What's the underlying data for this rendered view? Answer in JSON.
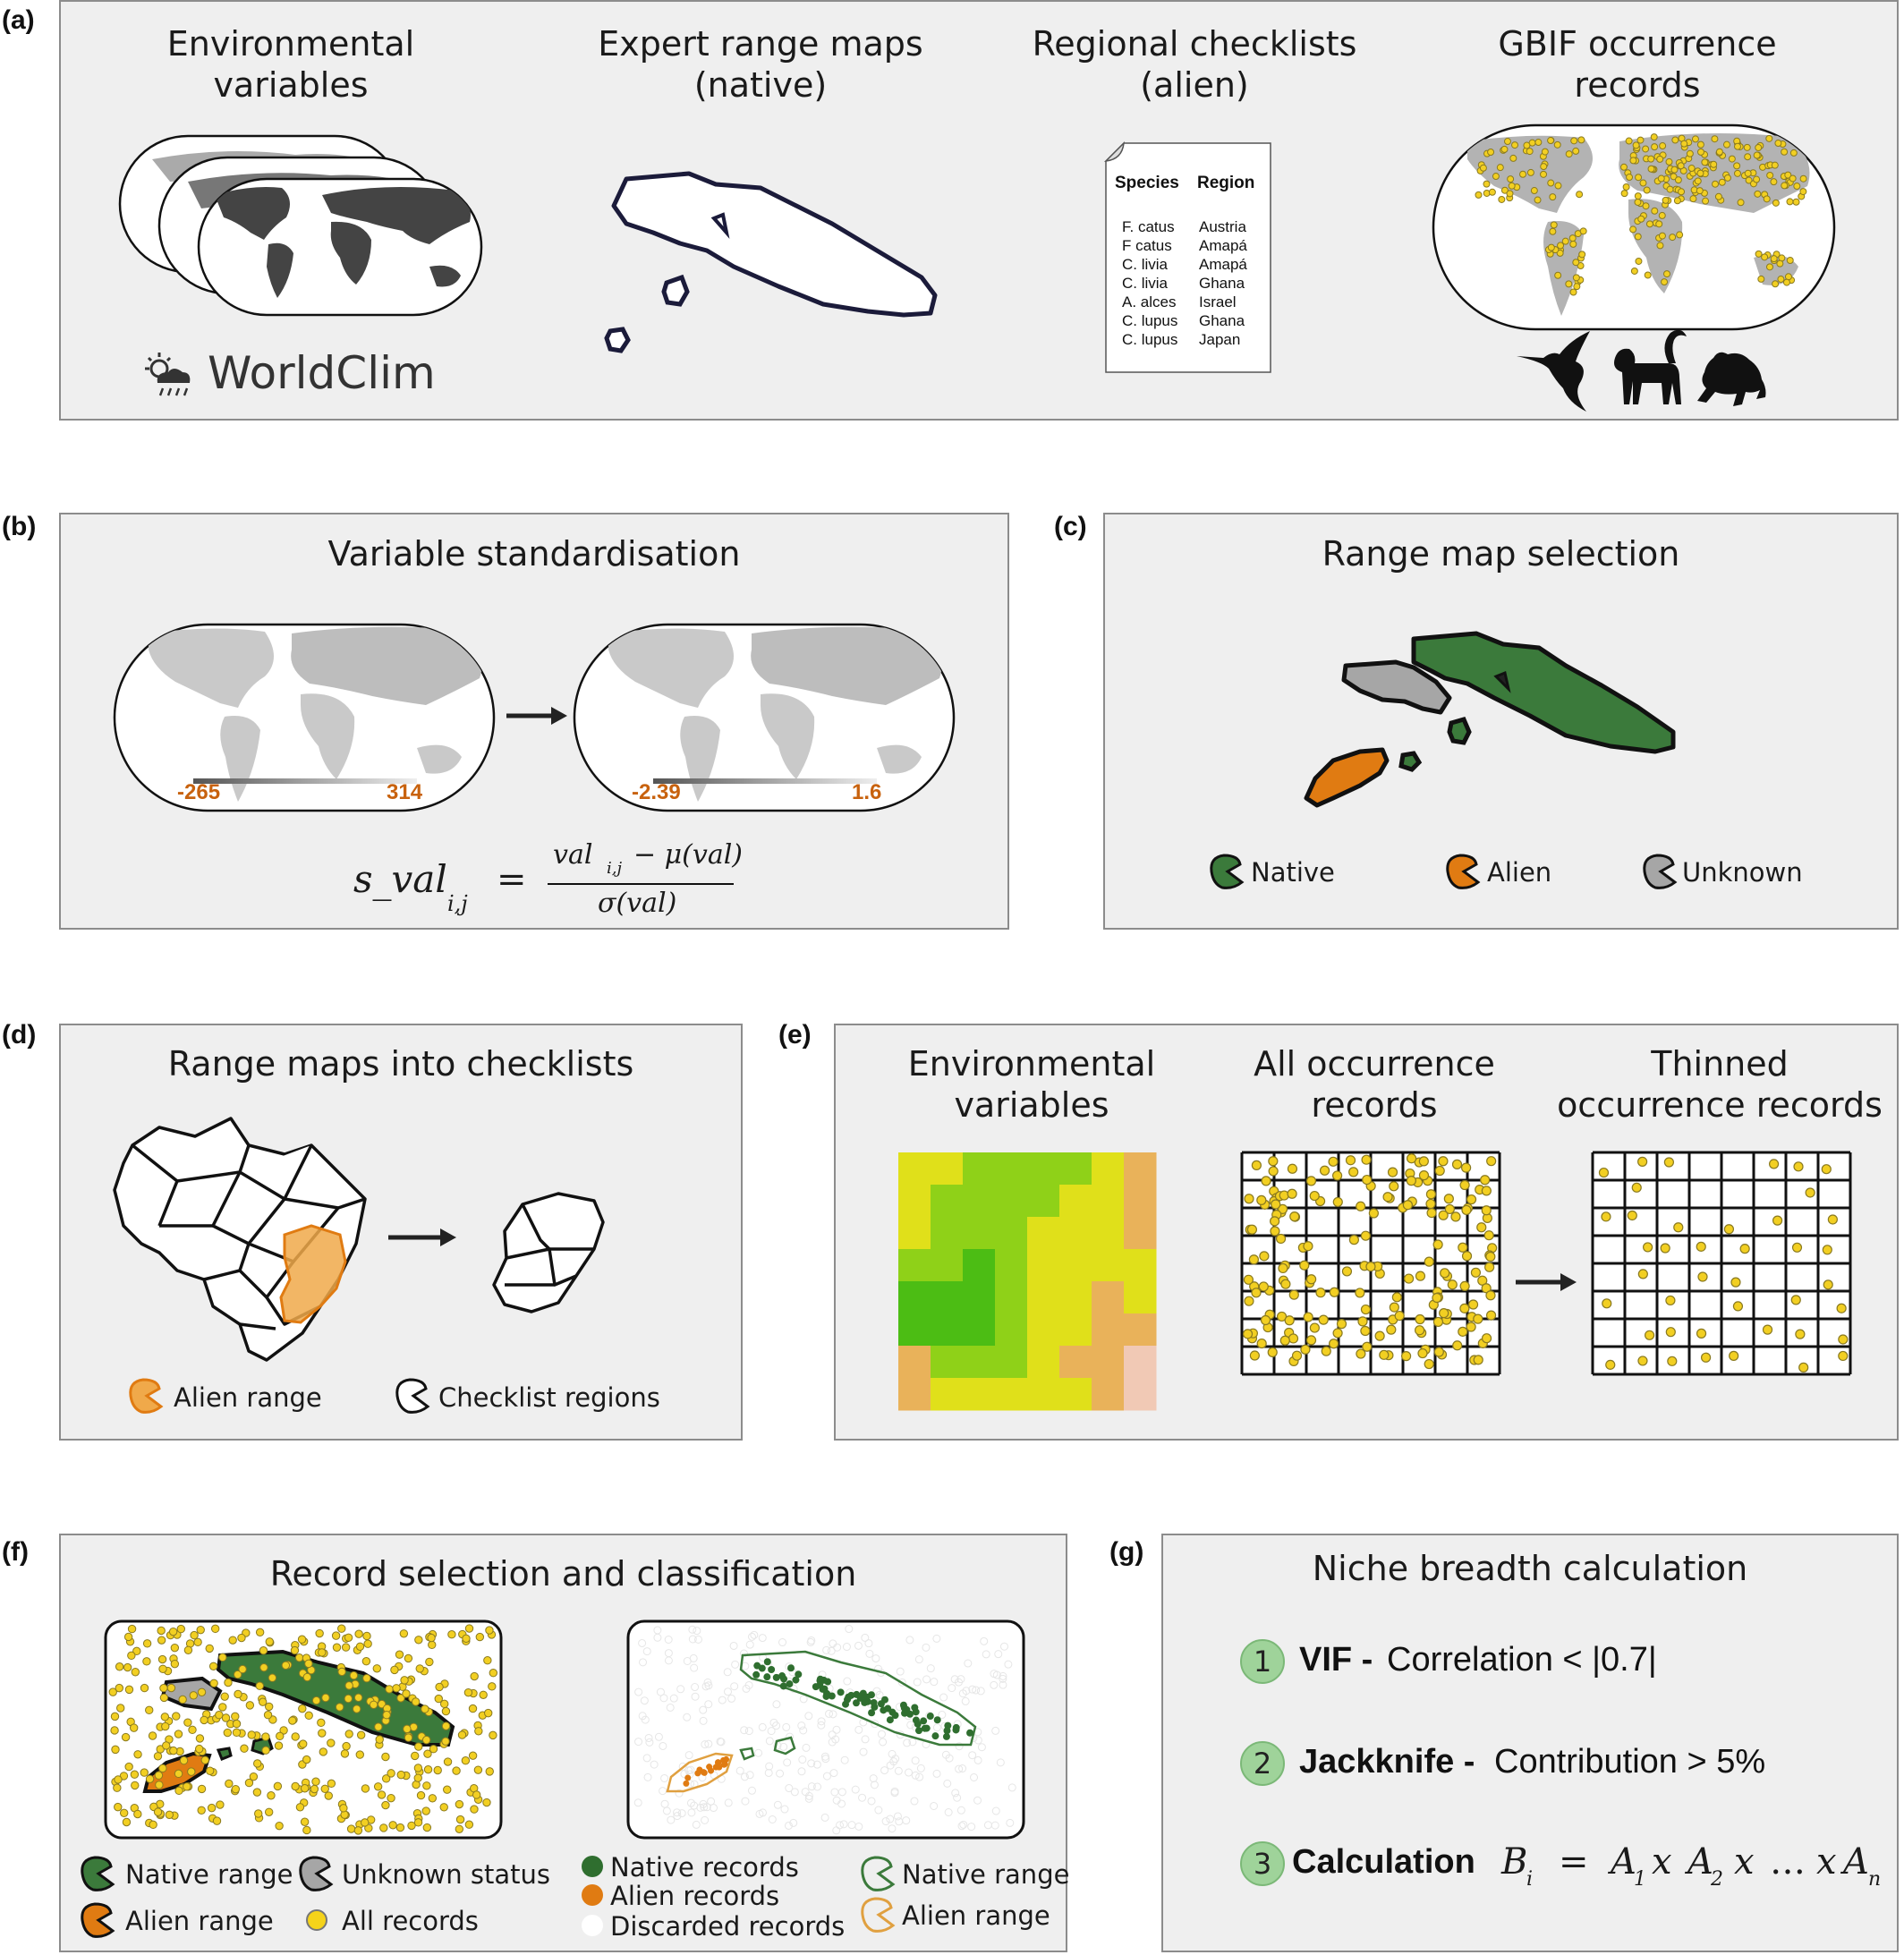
{
  "panel_a": {
    "label": "(a)",
    "col1_title": "Environmental\nvariables",
    "col1_logo": "WorldClim",
    "col2_title": "Expert range maps\n(native)",
    "col3_title": "Regional checklists\n(alien)",
    "col4_title": "GBIF occurrence\nrecords",
    "checklist_header_species": "Species",
    "checklist_header_region": "Region",
    "checklist_rows": [
      {
        "species": "F. catus",
        "region": "Austria"
      },
      {
        "species": "F catus",
        "region": "Amapá"
      },
      {
        "species": "C. livia",
        "region": "Amapá"
      },
      {
        "species": "C. livia",
        "region": "Ghana"
      },
      {
        "species": "A. alces",
        "region": "Israel"
      },
      {
        "species": "C. lupus",
        "region": "Ghana"
      },
      {
        "species": "C. lupus",
        "region": "Japan"
      }
    ],
    "icons": [
      "sun-cloud-rain-icon",
      "hummingbird-icon",
      "monkey-icon",
      "frog-icon"
    ]
  },
  "panel_b": {
    "label": "(b)",
    "title": "Variable standardisation",
    "left_min": "-265",
    "left_max": "314",
    "right_min": "-2.39",
    "right_max": "1.6",
    "formula_lhs": "s_val",
    "formula_lhs_sub": "i,j",
    "formula_num": "val",
    "formula_num_sub": "i,j",
    "formula_num_rest": " − μ(val)",
    "formula_den": "σ(val)",
    "formula_eq": "=",
    "accent": "#c8620e"
  },
  "panel_c": {
    "label": "(c)",
    "title": "Range map selection",
    "legend": [
      "Native",
      "Alien",
      "Unknown"
    ],
    "colors": {
      "native": "#3b7a3b",
      "alien": "#e07b12",
      "unknown": "#a6a6a6"
    }
  },
  "panel_d": {
    "label": "(d)",
    "title": "Range maps into checklists",
    "legend": [
      "Alien range",
      "Checklist regions"
    ],
    "colors": {
      "alien": "#f0a94a"
    }
  },
  "panel_e": {
    "label": "(e)",
    "col1_title": "Environmental\nvariables",
    "col2_title": "All occurrence\nrecords",
    "col3_title": "Thinned\noccurrence records",
    "heatmap": [
      [
        1,
        1,
        2,
        2,
        2,
        2,
        1,
        0
      ],
      [
        1,
        2,
        2,
        2,
        2,
        1,
        1,
        0
      ],
      [
        1,
        2,
        2,
        2,
        1,
        1,
        1,
        0
      ],
      [
        2,
        2,
        3,
        2,
        1,
        1,
        1,
        1
      ],
      [
        3,
        3,
        3,
        2,
        1,
        1,
        0,
        1
      ],
      [
        3,
        3,
        3,
        2,
        1,
        1,
        0,
        0
      ],
      [
        0,
        2,
        2,
        2,
        1,
        0,
        0,
        5
      ],
      [
        0,
        1,
        1,
        1,
        1,
        1,
        0,
        5
      ]
    ],
    "heat_colors": [
      "#e9b25a",
      "#e0e01a",
      "#8fd118",
      "#4cbd14",
      "#20a80f",
      "#f1c9b5"
    ]
  },
  "panel_f": {
    "label": "(f)",
    "title": "Record selection and classification",
    "legend_left": [
      "Native range",
      "Unknown status",
      "Alien range",
      "All records"
    ],
    "legend_mid": [
      "Native records",
      "Alien records",
      "Discarded records"
    ],
    "legend_right": [
      "Native range",
      "Alien range"
    ]
  },
  "panel_g": {
    "label": "(g)",
    "title": "Niche breadth calculation",
    "steps": [
      {
        "n": "1",
        "bold": "VIF -",
        "rest": " Correlation < |0.7|"
      },
      {
        "n": "2",
        "bold": "Jackknife -",
        "rest": " Contribution > 5%"
      },
      {
        "n": "3",
        "bold": "Calculation",
        "rest": ""
      }
    ],
    "formula": {
      "b": "B",
      "b_sub": "i",
      "eq": "=",
      "a1": "A",
      "s1": "1",
      "x1": "x",
      "a2": "A",
      "s2": "2",
      "x2": "x",
      "dots": "…",
      "x3": "x",
      "an": "A",
      "sn": "n"
    }
  }
}
